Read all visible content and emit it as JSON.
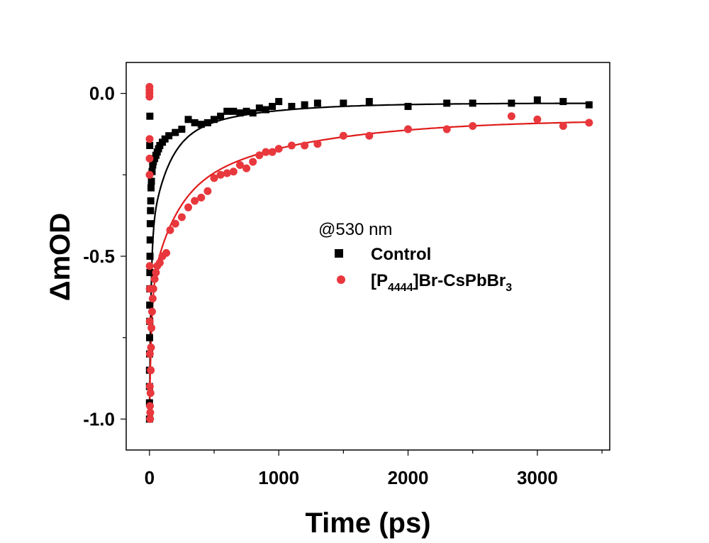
{
  "chart_data": {
    "type": "scatter",
    "xlabel": "Time (ps)",
    "ylabel": "ΔmOD",
    "xlim": [
      -180,
      3560
    ],
    "ylim": [
      -1.095,
      0.095
    ],
    "x_ticks": [
      0,
      1000,
      2000,
      3000
    ],
    "x_tick_labels": [
      "0",
      "1000",
      "2000",
      "3000"
    ],
    "y_ticks": [
      0.0,
      -0.5,
      -1.0
    ],
    "y_tick_labels": [
      "0.0",
      "-0.5",
      "-1.0"
    ],
    "grid": false,
    "legend_position": "center-right",
    "legend_title": "@530 nm",
    "series": [
      {
        "name": "Control",
        "color": "#000000",
        "marker": "square",
        "points": [
          [
            0,
            -1.0
          ],
          [
            0,
            -0.95
          ],
          [
            0,
            -0.9
          ],
          [
            0,
            -0.85
          ],
          [
            1,
            -0.8
          ],
          [
            1,
            -0.75
          ],
          [
            2,
            -0.7
          ],
          [
            2,
            -0.65
          ],
          [
            3,
            -0.6
          ],
          [
            3,
            -0.55
          ],
          [
            4,
            -0.5
          ],
          [
            5,
            -0.45
          ],
          [
            6,
            -0.4
          ],
          [
            8,
            -0.36
          ],
          [
            10,
            -0.33
          ],
          [
            12,
            -0.29
          ],
          [
            15,
            -0.27
          ],
          [
            2,
            -0.16
          ],
          [
            3,
            -0.07
          ],
          [
            20,
            -0.24
          ],
          [
            25,
            -0.22
          ],
          [
            30,
            -0.21
          ],
          [
            40,
            -0.2
          ],
          [
            50,
            -0.19
          ],
          [
            60,
            -0.18
          ],
          [
            70,
            -0.17
          ],
          [
            80,
            -0.16
          ],
          [
            100,
            -0.15
          ],
          [
            120,
            -0.14
          ],
          [
            150,
            -0.13
          ],
          [
            200,
            -0.12
          ],
          [
            250,
            -0.11
          ],
          [
            300,
            -0.08
          ],
          [
            350,
            -0.09
          ],
          [
            400,
            -0.095
          ],
          [
            450,
            -0.09
          ],
          [
            500,
            -0.08
          ],
          [
            550,
            -0.07
          ],
          [
            600,
            -0.055
          ],
          [
            650,
            -0.055
          ],
          [
            700,
            -0.06
          ],
          [
            750,
            -0.055
          ],
          [
            800,
            -0.06
          ],
          [
            850,
            -0.045
          ],
          [
            900,
            -0.05
          ],
          [
            950,
            -0.04
          ],
          [
            1000,
            -0.025
          ],
          [
            1100,
            -0.04
          ],
          [
            1200,
            -0.035
          ],
          [
            1300,
            -0.03
          ],
          [
            1500,
            -0.03
          ],
          [
            1700,
            -0.025
          ],
          [
            2000,
            -0.04
          ],
          [
            2300,
            -0.03
          ],
          [
            2500,
            -0.03
          ],
          [
            2800,
            -0.03
          ],
          [
            3000,
            -0.02
          ],
          [
            3200,
            -0.025
          ],
          [
            3400,
            -0.035
          ]
        ],
        "fit": {
          "a1": -0.55,
          "t1": 12,
          "a2": -0.3,
          "t2": 130,
          "a3": -0.12,
          "t3": 600,
          "c": -0.03
        }
      },
      {
        "name": "[P4444]Br-CsPbBr3",
        "color": "#e8383d",
        "marker": "circle",
        "points": [
          [
            0,
            0.02
          ],
          [
            0,
            0.01
          ],
          [
            0,
            0.0
          ],
          [
            0,
            -0.01
          ],
          [
            1,
            -0.14
          ],
          [
            1,
            -0.2
          ],
          [
            1,
            -0.25
          ],
          [
            2,
            -0.53
          ],
          [
            2,
            -0.6
          ],
          [
            2,
            -0.7
          ],
          [
            3,
            -0.8
          ],
          [
            3,
            -0.9
          ],
          [
            4,
            -0.96
          ],
          [
            5,
            -1.0
          ],
          [
            6,
            -0.98
          ],
          [
            8,
            -0.92
          ],
          [
            10,
            -0.85
          ],
          [
            12,
            -0.78
          ],
          [
            15,
            -0.72
          ],
          [
            20,
            -0.67
          ],
          [
            25,
            -0.63
          ],
          [
            30,
            -0.6
          ],
          [
            40,
            -0.57
          ],
          [
            50,
            -0.55
          ],
          [
            60,
            -0.53
          ],
          [
            80,
            -0.52
          ],
          [
            100,
            -0.5
          ],
          [
            130,
            -0.49
          ],
          [
            160,
            -0.42
          ],
          [
            200,
            -0.4
          ],
          [
            250,
            -0.38
          ],
          [
            300,
            -0.35
          ],
          [
            350,
            -0.33
          ],
          [
            400,
            -0.32
          ],
          [
            450,
            -0.3
          ],
          [
            500,
            -0.26
          ],
          [
            550,
            -0.25
          ],
          [
            600,
            -0.245
          ],
          [
            650,
            -0.24
          ],
          [
            700,
            -0.22
          ],
          [
            750,
            -0.23
          ],
          [
            800,
            -0.21
          ],
          [
            850,
            -0.19
          ],
          [
            900,
            -0.18
          ],
          [
            950,
            -0.18
          ],
          [
            1000,
            -0.17
          ],
          [
            1100,
            -0.16
          ],
          [
            1200,
            -0.16
          ],
          [
            1300,
            -0.155
          ],
          [
            1500,
            -0.13
          ],
          [
            1700,
            -0.13
          ],
          [
            2000,
            -0.11
          ],
          [
            2300,
            -0.11
          ],
          [
            2500,
            -0.1
          ],
          [
            2800,
            -0.07
          ],
          [
            3000,
            -0.08
          ],
          [
            3200,
            -0.1
          ],
          [
            3400,
            -0.09
          ]
        ],
        "fit": {
          "a1": -0.38,
          "t1": 15,
          "a2": -0.3,
          "t2": 180,
          "a3": -0.24,
          "t3": 1000,
          "c": -0.08
        }
      }
    ]
  },
  "legend": {
    "title": "@530 nm",
    "items": [
      {
        "label": "Control"
      },
      {
        "label_main": "[P",
        "label_sub": "4444",
        "label_mid": "]Br-CsPbBr",
        "label_sub2": "3"
      }
    ]
  }
}
